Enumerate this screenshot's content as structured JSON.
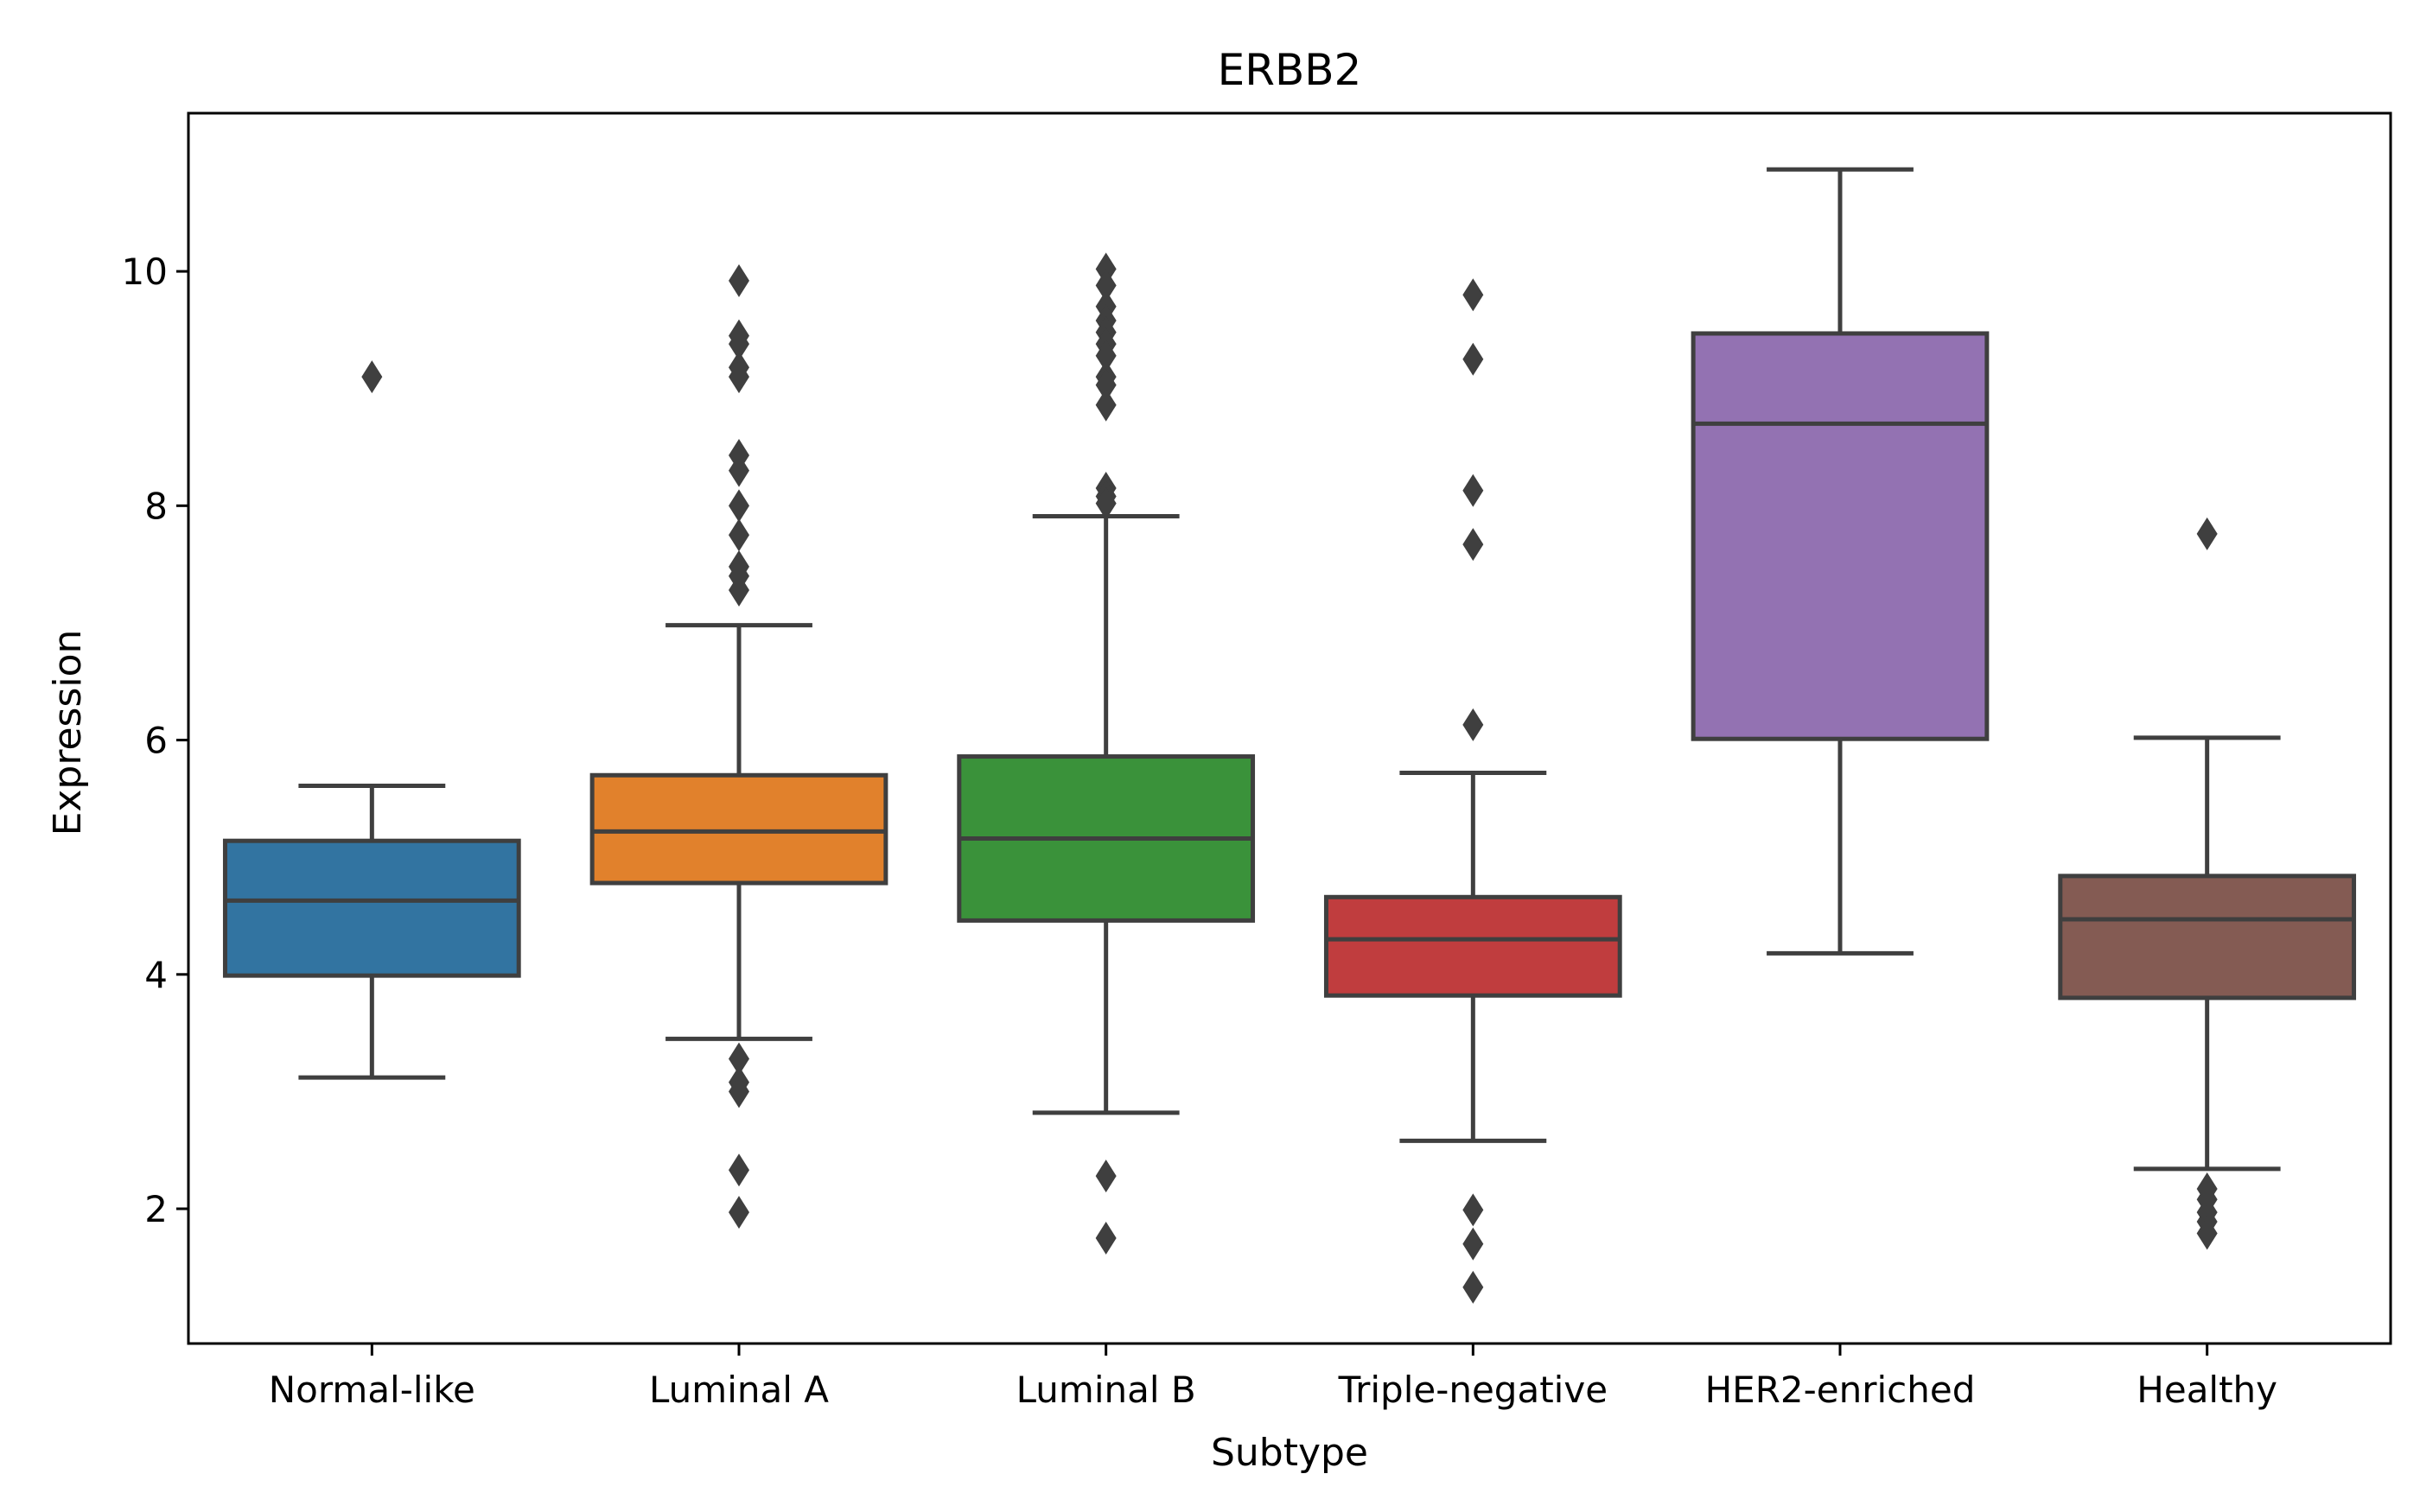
{
  "chart_data": {
    "type": "box",
    "title": "ERBB2",
    "xlabel": "Subtype",
    "ylabel": "Expression",
    "ylim": [
      0.85,
      11.35
    ],
    "yticks": [
      2,
      4,
      6,
      8,
      10
    ],
    "grid": false,
    "categories": [
      "Normal-like",
      "Luminal A",
      "Luminal B",
      "Triple-negative",
      "HER2-enriched",
      "Healthy"
    ],
    "colors": [
      "#3274a1",
      "#e1812c",
      "#3a923a",
      "#c03d3e",
      "#9372b2",
      "#845b53"
    ],
    "edge_color": "#3f3f3f",
    "boxes": [
      {
        "whislo": 3.12,
        "q1": 3.99,
        "med": 4.63,
        "q3": 5.14,
        "whishi": 5.61,
        "fliers": [
          9.1
        ]
      },
      {
        "whislo": 3.45,
        "q1": 4.78,
        "med": 5.22,
        "q3": 5.7,
        "whishi": 6.98,
        "fliers": [
          9.92,
          9.45,
          9.38,
          9.18,
          9.1,
          8.43,
          8.3,
          8.0,
          7.75,
          7.48,
          7.4,
          7.28,
          3.28,
          3.08,
          3.0,
          2.33,
          1.97
        ]
      },
      {
        "whislo": 2.82,
        "q1": 4.46,
        "med": 5.16,
        "q3": 5.86,
        "whishi": 7.91,
        "fliers": [
          10.02,
          9.88,
          9.7,
          9.58,
          9.48,
          9.38,
          9.28,
          9.1,
          9.03,
          8.86,
          8.15,
          8.08,
          8.02,
          2.28,
          1.75
        ]
      },
      {
        "whislo": 2.58,
        "q1": 3.82,
        "med": 4.3,
        "q3": 4.66,
        "whishi": 5.72,
        "fliers": [
          9.8,
          9.25,
          8.13,
          7.67,
          6.13,
          1.99,
          1.7,
          1.33
        ]
      },
      {
        "whislo": 4.18,
        "q1": 6.01,
        "med": 8.7,
        "q3": 9.47,
        "whishi": 10.87,
        "fliers": []
      },
      {
        "whislo": 2.34,
        "q1": 3.8,
        "med": 4.47,
        "q3": 4.84,
        "whishi": 6.02,
        "fliers": [
          7.76,
          2.17,
          2.08,
          1.97,
          1.89,
          1.79
        ]
      }
    ]
  }
}
